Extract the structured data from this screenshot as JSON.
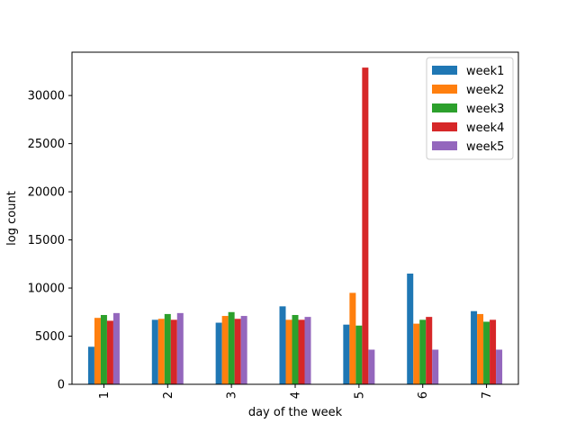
{
  "chart_data": {
    "type": "bar",
    "title": "",
    "xlabel": "day of the week",
    "ylabel": "log count",
    "categories": [
      "1",
      "2",
      "3",
      "4",
      "5",
      "6",
      "7"
    ],
    "ylim": [
      0,
      34500
    ],
    "yticks": [
      0,
      5000,
      10000,
      15000,
      20000,
      25000,
      30000
    ],
    "ytick_labels": [
      "0",
      "5000",
      "10000",
      "15000",
      "20000",
      "25000",
      "30000"
    ],
    "grid": false,
    "legend_position": "top-right",
    "series": [
      {
        "name": "week1",
        "color": "#1f77b4",
        "values": [
          3900,
          6700,
          6400,
          8100,
          6200,
          11500,
          7600
        ]
      },
      {
        "name": "week2",
        "color": "#ff7f0e",
        "values": [
          6900,
          6800,
          7100,
          6700,
          9500,
          6300,
          7300
        ]
      },
      {
        "name": "week3",
        "color": "#2ca02c",
        "values": [
          7200,
          7300,
          7500,
          7200,
          6100,
          6700,
          6500
        ]
      },
      {
        "name": "week4",
        "color": "#d62728",
        "values": [
          6600,
          6700,
          6800,
          6700,
          32900,
          7000,
          6700
        ]
      },
      {
        "name": "week5",
        "color": "#9467bd",
        "values": [
          7400,
          7400,
          7100,
          7000,
          3600,
          3600,
          3600
        ]
      }
    ]
  }
}
